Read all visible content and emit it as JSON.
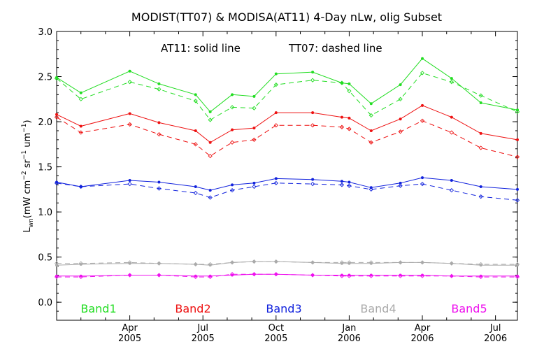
{
  "chart_data": {
    "type": "line",
    "title": "MODIST(TT07) & MODISA(AT11) 4-Day nLw, olig Subset",
    "annotation_solid": "AT11: solid line",
    "annotation_dashed": "TT07: dashed line",
    "ylabel_main": "L",
    "ylabel_sub": "wn",
    "ylabel_units": "(mW cm",
    "ylabel_exp1": "−2",
    "ylabel_mid": " sr",
    "ylabel_exp2": "−1",
    "ylabel_um": " um",
    "ylabel_exp3": "−1",
    "ylabel_close": ")",
    "ylim": [
      -0.2,
      3.0
    ],
    "xlim": [
      2005.0,
      2006.575
    ],
    "grid": false,
    "legend_placement": "bottom",
    "y_ticks": [
      {
        "value": 0.0,
        "label": "0.0"
      },
      {
        "value": 0.5,
        "label": "0.5"
      },
      {
        "value": 1.0,
        "label": "1.0"
      },
      {
        "value": 1.5,
        "label": "1.5"
      },
      {
        "value": 2.0,
        "label": "2.0"
      },
      {
        "value": 2.5,
        "label": "2.5"
      },
      {
        "value": 3.0,
        "label": "3.0"
      }
    ],
    "x_ticks": [
      {
        "value": 2005.25,
        "month": "Apr",
        "year": "2005"
      },
      {
        "value": 2005.5,
        "month": "Jul",
        "year": "2005"
      },
      {
        "value": 2005.75,
        "month": "Oct",
        "year": "2005"
      },
      {
        "value": 2006.0,
        "month": "Jan",
        "year": "2006"
      },
      {
        "value": 2006.25,
        "month": "Apr",
        "year": "2006"
      },
      {
        "value": 2006.5,
        "month": "Jul",
        "year": "2006"
      }
    ],
    "x_minor_ticks": [
      2005.083,
      2005.167,
      2005.333,
      2005.417,
      2005.583,
      2005.667,
      2005.833,
      2005.917,
      2006.083,
      2006.167,
      2006.333,
      2006.417
    ],
    "series": [
      {
        "name": "Band1",
        "color": "#22dd22",
        "solid": [
          [
            2005.0,
            2.49
          ],
          [
            2005.083,
            2.32
          ],
          [
            2005.25,
            2.56
          ],
          [
            2005.35,
            2.42
          ],
          [
            2005.475,
            2.3
          ],
          [
            2005.525,
            2.11
          ],
          [
            2005.6,
            2.3
          ],
          [
            2005.675,
            2.28
          ],
          [
            2005.75,
            2.53
          ],
          [
            2005.875,
            2.55
          ],
          [
            2005.975,
            2.43
          ],
          [
            2006.0,
            2.42
          ],
          [
            2006.075,
            2.2
          ],
          [
            2006.175,
            2.41
          ],
          [
            2006.25,
            2.7
          ],
          [
            2006.35,
            2.48
          ],
          [
            2006.45,
            2.21
          ],
          [
            2006.575,
            2.13
          ]
        ],
        "dashed": [
          [
            2005.0,
            2.48
          ],
          [
            2005.083,
            2.25
          ],
          [
            2005.25,
            2.44
          ],
          [
            2005.35,
            2.36
          ],
          [
            2005.475,
            2.23
          ],
          [
            2005.525,
            2.02
          ],
          [
            2005.6,
            2.16
          ],
          [
            2005.675,
            2.15
          ],
          [
            2005.75,
            2.41
          ],
          [
            2005.875,
            2.46
          ],
          [
            2005.975,
            2.43
          ],
          [
            2006.0,
            2.34
          ],
          [
            2006.075,
            2.07
          ],
          [
            2006.175,
            2.25
          ],
          [
            2006.25,
            2.54
          ],
          [
            2006.35,
            2.44
          ],
          [
            2006.45,
            2.29
          ],
          [
            2006.575,
            2.11
          ]
        ]
      },
      {
        "name": "Band2",
        "color": "#ee1111",
        "solid": [
          [
            2005.0,
            2.08
          ],
          [
            2005.083,
            1.95
          ],
          [
            2005.25,
            2.09
          ],
          [
            2005.35,
            1.99
          ],
          [
            2005.475,
            1.9
          ],
          [
            2005.525,
            1.77
          ],
          [
            2005.6,
            1.91
          ],
          [
            2005.675,
            1.93
          ],
          [
            2005.75,
            2.1
          ],
          [
            2005.875,
            2.1
          ],
          [
            2005.975,
            2.05
          ],
          [
            2006.0,
            2.04
          ],
          [
            2006.075,
            1.9
          ],
          [
            2006.175,
            2.03
          ],
          [
            2006.25,
            2.18
          ],
          [
            2006.35,
            2.05
          ],
          [
            2006.45,
            1.87
          ],
          [
            2006.575,
            1.8
          ]
        ],
        "dashed": [
          [
            2005.0,
            2.05
          ],
          [
            2005.083,
            1.88
          ],
          [
            2005.25,
            1.97
          ],
          [
            2005.35,
            1.86
          ],
          [
            2005.475,
            1.75
          ],
          [
            2005.525,
            1.62
          ],
          [
            2005.6,
            1.77
          ],
          [
            2005.675,
            1.8
          ],
          [
            2005.75,
            1.96
          ],
          [
            2005.875,
            1.96
          ],
          [
            2005.975,
            1.94
          ],
          [
            2006.0,
            1.92
          ],
          [
            2006.075,
            1.77
          ],
          [
            2006.175,
            1.89
          ],
          [
            2006.25,
            2.01
          ],
          [
            2006.35,
            1.88
          ],
          [
            2006.45,
            1.71
          ],
          [
            2006.575,
            1.61
          ]
        ]
      },
      {
        "name": "Band3",
        "color": "#1122dd",
        "solid": [
          [
            2005.0,
            1.33
          ],
          [
            2005.083,
            1.28
          ],
          [
            2005.25,
            1.35
          ],
          [
            2005.35,
            1.33
          ],
          [
            2005.475,
            1.28
          ],
          [
            2005.525,
            1.24
          ],
          [
            2005.6,
            1.3
          ],
          [
            2005.675,
            1.32
          ],
          [
            2005.75,
            1.37
          ],
          [
            2005.875,
            1.36
          ],
          [
            2005.975,
            1.34
          ],
          [
            2006.0,
            1.33
          ],
          [
            2006.075,
            1.27
          ],
          [
            2006.175,
            1.32
          ],
          [
            2006.25,
            1.38
          ],
          [
            2006.35,
            1.35
          ],
          [
            2006.45,
            1.28
          ],
          [
            2006.575,
            1.25
          ]
        ],
        "dashed": [
          [
            2005.0,
            1.32
          ],
          [
            2005.083,
            1.28
          ],
          [
            2005.25,
            1.31
          ],
          [
            2005.35,
            1.26
          ],
          [
            2005.475,
            1.21
          ],
          [
            2005.525,
            1.16
          ],
          [
            2005.6,
            1.24
          ],
          [
            2005.675,
            1.28
          ],
          [
            2005.75,
            1.32
          ],
          [
            2005.875,
            1.31
          ],
          [
            2005.975,
            1.3
          ],
          [
            2006.0,
            1.29
          ],
          [
            2006.075,
            1.25
          ],
          [
            2006.175,
            1.29
          ],
          [
            2006.25,
            1.31
          ],
          [
            2006.35,
            1.24
          ],
          [
            2006.45,
            1.17
          ],
          [
            2006.575,
            1.13
          ]
        ]
      },
      {
        "name": "Band4",
        "color": "#aaaaaa",
        "solid": [
          [
            2005.0,
            0.41
          ],
          [
            2005.083,
            0.42
          ],
          [
            2005.25,
            0.43
          ],
          [
            2005.35,
            0.43
          ],
          [
            2005.475,
            0.42
          ],
          [
            2005.525,
            0.41
          ],
          [
            2005.6,
            0.44
          ],
          [
            2005.675,
            0.45
          ],
          [
            2005.75,
            0.45
          ],
          [
            2005.875,
            0.44
          ],
          [
            2005.975,
            0.43
          ],
          [
            2006.0,
            0.43
          ],
          [
            2006.075,
            0.43
          ],
          [
            2006.175,
            0.44
          ],
          [
            2006.25,
            0.44
          ],
          [
            2006.35,
            0.43
          ],
          [
            2006.45,
            0.41
          ],
          [
            2006.575,
            0.41
          ]
        ],
        "dashed": [
          [
            2005.0,
            0.43
          ],
          [
            2005.083,
            0.43
          ],
          [
            2005.25,
            0.44
          ],
          [
            2005.35,
            0.43
          ],
          [
            2005.475,
            0.42
          ],
          [
            2005.525,
            0.42
          ],
          [
            2005.6,
            0.44
          ],
          [
            2005.675,
            0.45
          ],
          [
            2005.75,
            0.45
          ],
          [
            2005.875,
            0.44
          ],
          [
            2005.975,
            0.44
          ],
          [
            2006.0,
            0.44
          ],
          [
            2006.075,
            0.44
          ],
          [
            2006.175,
            0.44
          ],
          [
            2006.25,
            0.44
          ],
          [
            2006.35,
            0.43
          ],
          [
            2006.45,
            0.42
          ],
          [
            2006.575,
            0.42
          ]
        ]
      },
      {
        "name": "Band5",
        "color": "#ee11ee",
        "solid": [
          [
            2005.0,
            0.29
          ],
          [
            2005.083,
            0.29
          ],
          [
            2005.25,
            0.3
          ],
          [
            2005.35,
            0.3
          ],
          [
            2005.475,
            0.29
          ],
          [
            2005.525,
            0.29
          ],
          [
            2005.6,
            0.3
          ],
          [
            2005.675,
            0.31
          ],
          [
            2005.75,
            0.31
          ],
          [
            2005.875,
            0.3
          ],
          [
            2005.975,
            0.3
          ],
          [
            2006.0,
            0.3
          ],
          [
            2006.075,
            0.3
          ],
          [
            2006.175,
            0.3
          ],
          [
            2006.25,
            0.3
          ],
          [
            2006.35,
            0.29
          ],
          [
            2006.45,
            0.29
          ],
          [
            2006.575,
            0.29
          ]
        ],
        "dashed": [
          [
            2005.0,
            0.28
          ],
          [
            2005.083,
            0.28
          ],
          [
            2005.25,
            0.3
          ],
          [
            2005.35,
            0.3
          ],
          [
            2005.475,
            0.28
          ],
          [
            2005.525,
            0.28
          ],
          [
            2005.6,
            0.31
          ],
          [
            2005.675,
            0.31
          ],
          [
            2005.75,
            0.31
          ],
          [
            2005.875,
            0.3
          ],
          [
            2005.975,
            0.29
          ],
          [
            2006.0,
            0.29
          ],
          [
            2006.075,
            0.29
          ],
          [
            2006.175,
            0.29
          ],
          [
            2006.25,
            0.29
          ],
          [
            2006.35,
            0.29
          ],
          [
            2006.45,
            0.28
          ],
          [
            2006.575,
            0.28
          ]
        ]
      }
    ]
  }
}
